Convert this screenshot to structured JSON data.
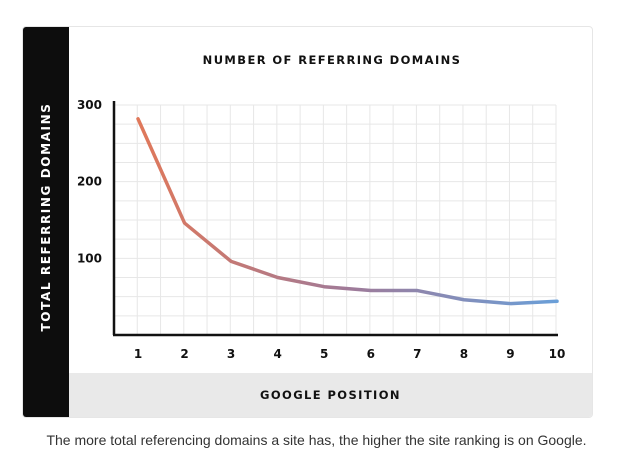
{
  "chart_data": {
    "type": "line",
    "title": "NUMBER OF REFERRING DOMAINS",
    "xlabel": "GOOGLE POSITION",
    "ylabel": "TOTAL REFERRING DOMAINS",
    "x": [
      1,
      2,
      3,
      4,
      5,
      6,
      7,
      8,
      9,
      10
    ],
    "series": [
      {
        "values": [
          282,
          146,
          96,
          75,
          63,
          58,
          58,
          46,
          41,
          44
        ]
      }
    ],
    "xticks": [
      "1",
      "2",
      "3",
      "4",
      "5",
      "6",
      "7",
      "8",
      "9",
      "10"
    ],
    "yticks": [
      "100",
      "200",
      "300"
    ],
    "ylim": [
      0,
      300
    ],
    "grid": true,
    "line_gradient": [
      "#e0785a",
      "#a07a98",
      "#6a9fd8"
    ]
  },
  "caption": "The more total referencing domains a site has, the higher the site ranking is on Google."
}
